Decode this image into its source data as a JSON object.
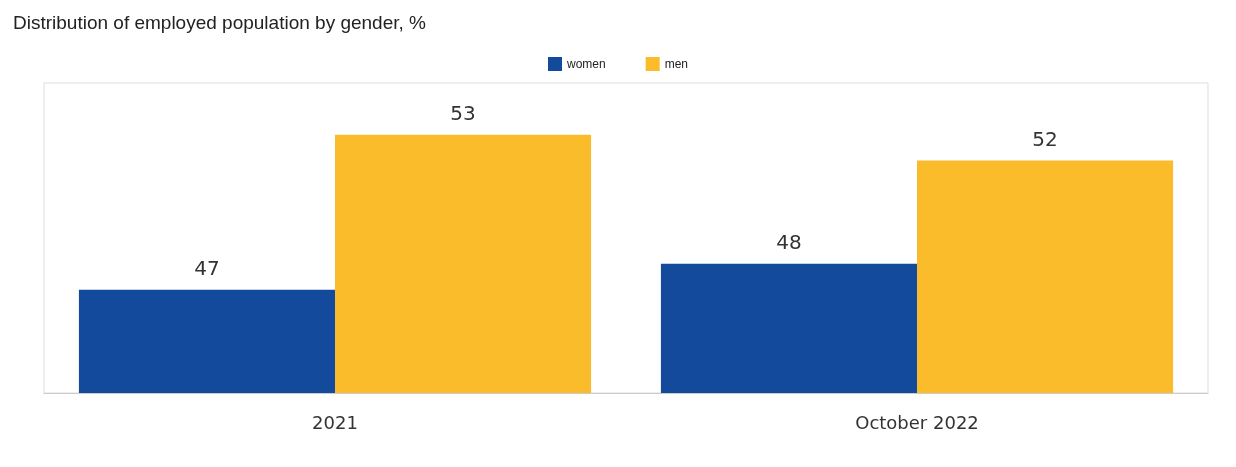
{
  "chart_data": {
    "type": "bar",
    "title": "Distribution of employed population by gender, %",
    "categories": [
      "2021",
      "October 2022"
    ],
    "series": [
      {
        "name": "women",
        "color": "#134a9c",
        "values": [
          47,
          48
        ]
      },
      {
        "name": "men",
        "color": "#fbbc2c",
        "values": [
          53,
          52
        ]
      }
    ],
    "ylim": [
      43,
      55
    ],
    "data_labels": true,
    "legend": "top"
  }
}
